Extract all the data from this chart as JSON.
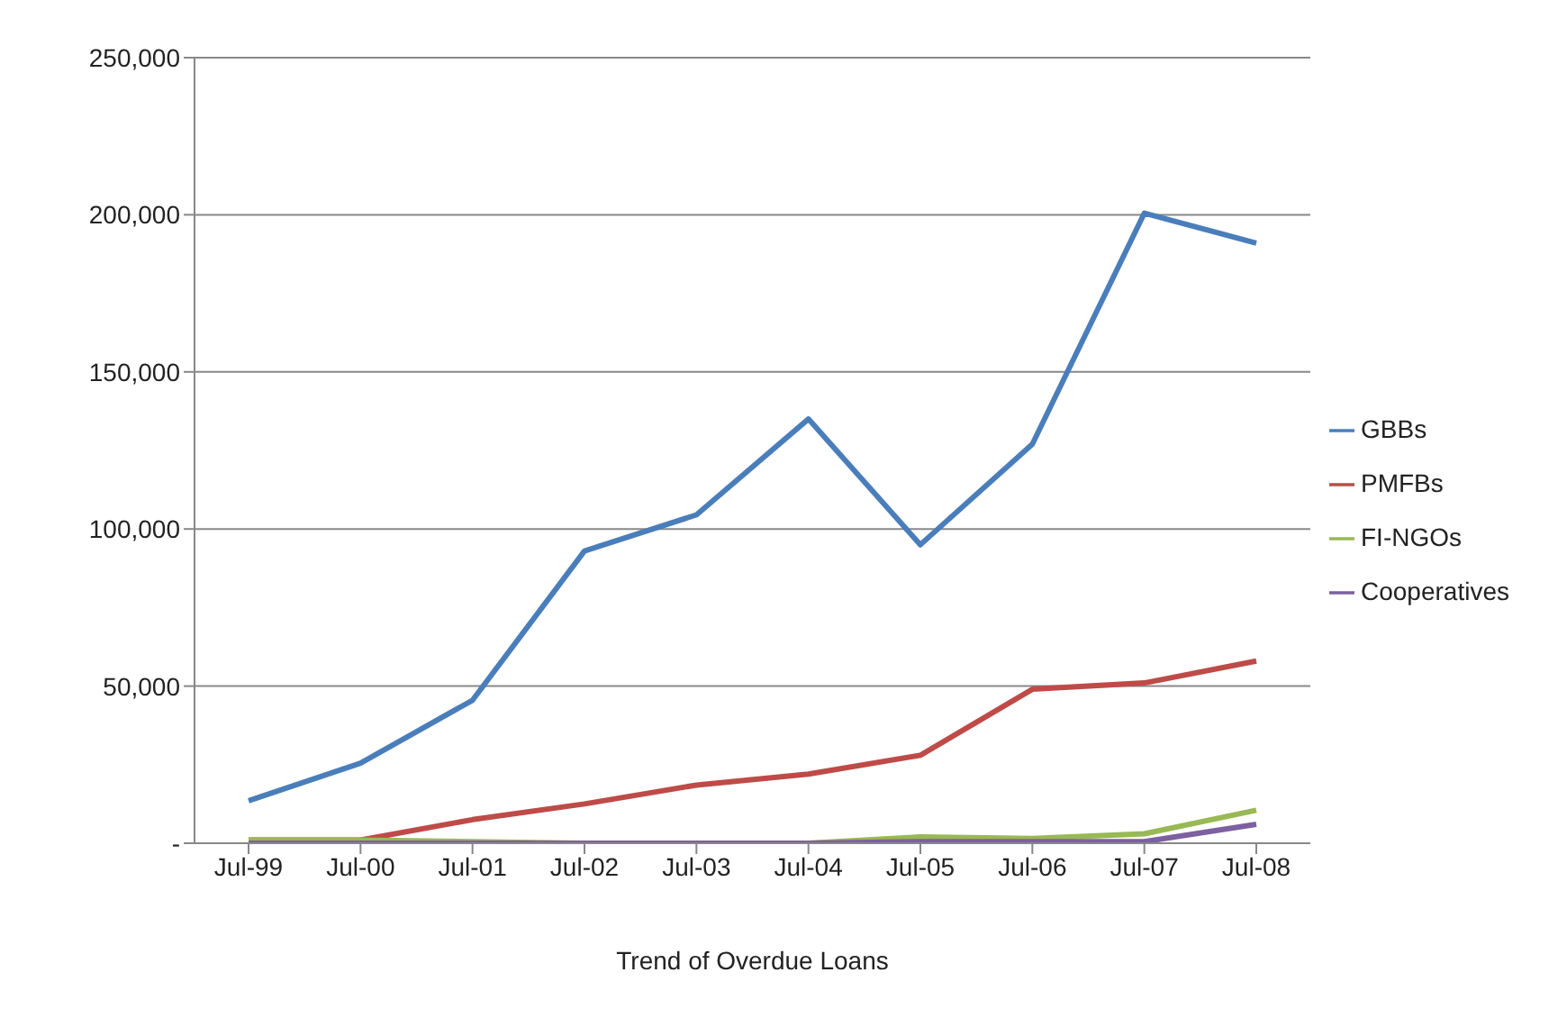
{
  "chart_data": {
    "type": "line",
    "xlabel": "Trend of Overdue Loans",
    "categories": [
      "Jul-99",
      "Jul-00",
      "Jul-01",
      "Jul-02",
      "Jul-03",
      "Jul-04",
      "Jul-05",
      "Jul-06",
      "Jul-07",
      "Jul-08"
    ],
    "series": [
      {
        "name": "GBBs",
        "color": "#4a7ebb",
        "values": [
          13500,
          25500,
          45500,
          93000,
          104500,
          135000,
          95000,
          127000,
          200500,
          191000
        ]
      },
      {
        "name": "PMFBs",
        "color": "#be4b48",
        "values": [
          1000,
          1000,
          7500,
          12500,
          18500,
          22000,
          28000,
          49000,
          51000,
          58000
        ]
      },
      {
        "name": "FI-NGOs",
        "color": "#98b954",
        "values": [
          1000,
          1000,
          500,
          0,
          0,
          0,
          2000,
          1500,
          3000,
          10500
        ]
      },
      {
        "name": "Cooperatives",
        "color": "#7d60a0",
        "values": [
          0,
          0,
          0,
          0,
          0,
          0,
          500,
          500,
          500,
          6000
        ]
      }
    ],
    "ylim": [
      0,
      250000
    ],
    "yticks": [
      {
        "value": 0,
        "label": "-"
      },
      {
        "value": 50000,
        "label": "50,000"
      },
      {
        "value": 100000,
        "label": "100,000"
      },
      {
        "value": 150000,
        "label": "150,000"
      },
      {
        "value": 200000,
        "label": "200,000"
      },
      {
        "value": 250000,
        "label": "250,000"
      }
    ],
    "grid": "y",
    "legend": "right",
    "marker": "none",
    "line_style": "solid"
  }
}
